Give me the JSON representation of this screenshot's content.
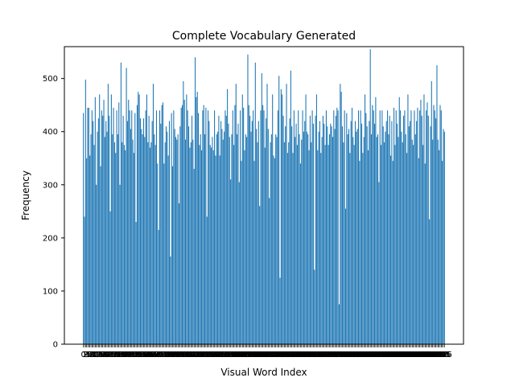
{
  "chart_data": {
    "type": "bar",
    "title": "Complete Vocabulary Generated",
    "xlabel": "Visual Word Index",
    "ylabel": "Frequency",
    "ylim": [
      0,
      560
    ],
    "yticks": [
      0,
      100,
      200,
      300,
      400,
      500
    ],
    "color": "#1f77b4",
    "grid": false,
    "legend": "none",
    "values": [
      435,
      240,
      498,
      350,
      445,
      445,
      355,
      395,
      440,
      420,
      375,
      465,
      300,
      400,
      425,
      470,
      335,
      440,
      430,
      460,
      390,
      420,
      400,
      490,
      430,
      250,
      470,
      395,
      445,
      380,
      360,
      440,
      395,
      455,
      300,
      530,
      380,
      430,
      375,
      365,
      520,
      420,
      460,
      440,
      405,
      440,
      385,
      360,
      435,
      230,
      450,
      475,
      470,
      425,
      405,
      395,
      425,
      390,
      440,
      470,
      380,
      430,
      370,
      380,
      420,
      490,
      395,
      375,
      440,
      340,
      215,
      440,
      415,
      450,
      455,
      340,
      380,
      410,
      400,
      355,
      420,
      165,
      435,
      335,
      440,
      405,
      390,
      385,
      395,
      265,
      410,
      445,
      450,
      495,
      460,
      385,
      470,
      440,
      410,
      370,
      380,
      430,
      385,
      330,
      540,
      465,
      475,
      435,
      375,
      395,
      365,
      440,
      450,
      395,
      445,
      240,
      440,
      420,
      375,
      370,
      390,
      365,
      440,
      355,
      395,
      400,
      430,
      355,
      420,
      405,
      385,
      400,
      440,
      430,
      480,
      415,
      390,
      310,
      395,
      440,
      375,
      450,
      490,
      395,
      415,
      305,
      440,
      345,
      470,
      445,
      365,
      395,
      390,
      545,
      450,
      430,
      400,
      420,
      440,
      345,
      530,
      405,
      380,
      420,
      260,
      440,
      510,
      450,
      440,
      370,
      425,
      490,
      405,
      275,
      380,
      395,
      470,
      355,
      350,
      395,
      390,
      440,
      505,
      125,
      480,
      470,
      430,
      380,
      410,
      490,
      360,
      380,
      425,
      515,
      410,
      360,
      440,
      390,
      415,
      375,
      440,
      395,
      340,
      385,
      440,
      400,
      420,
      470,
      400,
      395,
      365,
      430,
      380,
      440,
      415,
      140,
      430,
      470,
      365,
      400,
      420,
      360,
      390,
      430,
      415,
      375,
      440,
      410,
      375,
      395,
      415,
      410,
      390,
      440,
      405,
      430,
      445,
      440,
      75,
      490,
      475,
      410,
      380,
      440,
      255,
      435,
      395,
      405,
      360,
      420,
      445,
      390,
      375,
      420,
      400,
      405,
      440,
      345,
      440,
      415,
      360,
      390,
      470,
      435,
      410,
      365,
      420,
      555,
      395,
      450,
      440,
      415,
      465,
      390,
      395,
      305,
      440,
      375,
      440,
      410,
      380,
      400,
      420,
      440,
      395,
      430,
      355,
      420,
      345,
      445,
      375,
      440,
      415,
      390,
      465,
      440,
      400,
      380,
      430,
      440,
      395,
      360,
      470,
      410,
      420,
      440,
      385,
      375,
      440,
      395,
      420,
      445,
      350,
      440,
      460,
      430,
      375,
      470,
      340,
      440,
      455,
      430,
      235,
      410,
      495,
      385,
      450,
      440,
      425,
      525,
      385,
      365,
      450,
      440,
      345,
      405,
      400
    ]
  }
}
